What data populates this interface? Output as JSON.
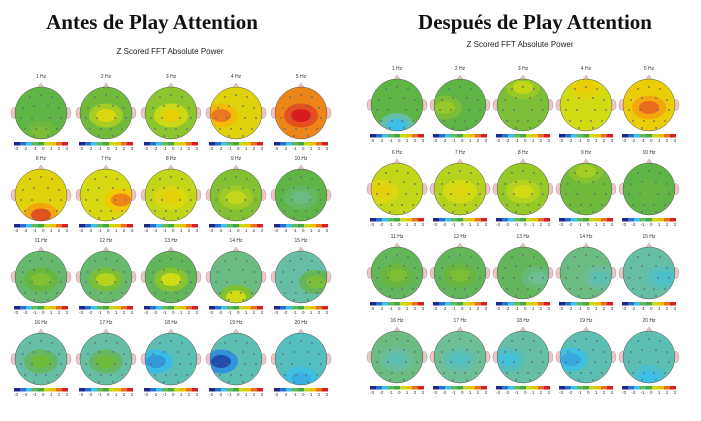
{
  "panels": [
    {
      "title": "Antes de Play Attention",
      "subtitle": "Z Scored FFT Absolute Power",
      "maps": [
        {
          "label": "1 Hz",
          "base": 0,
          "hot": 0.3,
          "region": "posterior"
        },
        {
          "label": "2 Hz",
          "base": 0.2,
          "hot": 1.2,
          "region": "center"
        },
        {
          "label": "3 Hz",
          "base": 0.5,
          "hot": 1.4,
          "region": "center"
        },
        {
          "label": "4 Hz",
          "base": 1.3,
          "hot": 2.3,
          "region": "left"
        },
        {
          "label": "5 Hz",
          "base": 2.2,
          "hot": 3,
          "region": "center"
        },
        {
          "label": "6 Hz",
          "base": 1.3,
          "hot": 2.6,
          "region": "posterior"
        },
        {
          "label": "7 Hz",
          "base": 1.1,
          "hot": 2.2,
          "region": "right"
        },
        {
          "label": "8 Hz",
          "base": 0.9,
          "hot": 1.4,
          "region": "center"
        },
        {
          "label": "9 Hz",
          "base": 0.4,
          "hot": 0.9,
          "region": "center"
        },
        {
          "label": "10 Hz",
          "base": 0,
          "hot": -0.3,
          "region": "center"
        },
        {
          "label": "11 Hz",
          "base": -0.2,
          "hot": 0.4,
          "region": "center"
        },
        {
          "label": "12 Hz",
          "base": -0.2,
          "hot": 0.8,
          "region": "center"
        },
        {
          "label": "13 Hz",
          "base": -0.1,
          "hot": 1,
          "region": "center"
        },
        {
          "label": "14 Hz",
          "base": -0.3,
          "hot": 1,
          "region": "posterior"
        },
        {
          "label": "15 Hz",
          "base": -0.5,
          "hot": 0.3,
          "region": "right"
        },
        {
          "label": "16 Hz",
          "base": -0.5,
          "hot": 0.2,
          "region": "center"
        },
        {
          "label": "17 Hz",
          "base": -0.5,
          "hot": 0.2,
          "region": "center"
        },
        {
          "label": "18 Hz",
          "base": -0.6,
          "hot": -1.5,
          "region": "left"
        },
        {
          "label": "19 Hz",
          "base": -0.6,
          "hot": -2.5,
          "region": "left"
        },
        {
          "label": "20 Hz",
          "base": -0.7,
          "hot": -1.2,
          "region": "posterior"
        }
      ]
    },
    {
      "title": "Después de Play Attention",
      "subtitle": "Z Scored FFT Absolute Power",
      "maps": [
        {
          "label": "1 Hz",
          "base": 0,
          "hot": -1,
          "region": "posterior"
        },
        {
          "label": "2 Hz",
          "base": 0,
          "hot": 0.6,
          "region": "left"
        },
        {
          "label": "3 Hz",
          "base": 0.3,
          "hot": 0.9,
          "region": "frontal"
        },
        {
          "label": "4 Hz",
          "base": 1,
          "hot": 1.5,
          "region": "frontal"
        },
        {
          "label": "5 Hz",
          "base": 1.5,
          "hot": 2.4,
          "region": "center"
        },
        {
          "label": "6 Hz",
          "base": 0.9,
          "hot": 1.4,
          "region": "left"
        },
        {
          "label": "7 Hz",
          "base": 0.8,
          "hot": 1.2,
          "region": "center"
        },
        {
          "label": "8 Hz",
          "base": 0.6,
          "hot": 1,
          "region": "center"
        },
        {
          "label": "9 Hz",
          "base": 0.2,
          "hot": 0.7,
          "region": "frontal"
        },
        {
          "label": "10 Hz",
          "base": 0,
          "hot": 0.1,
          "region": "center"
        },
        {
          "label": "11 Hz",
          "base": -0.1,
          "hot": 0.3,
          "region": "center"
        },
        {
          "label": "12 Hz",
          "base": -0.1,
          "hot": 0.3,
          "region": "center"
        },
        {
          "label": "13 Hz",
          "base": -0.1,
          "hot": -0.4,
          "region": "right"
        },
        {
          "label": "14 Hz",
          "base": -0.3,
          "hot": -0.6,
          "region": "right"
        },
        {
          "label": "15 Hz",
          "base": -0.5,
          "hot": -0.8,
          "region": "right"
        },
        {
          "label": "16 Hz",
          "base": -0.3,
          "hot": -0.6,
          "region": "center"
        },
        {
          "label": "17 Hz",
          "base": -0.4,
          "hot": -0.7,
          "region": "center"
        },
        {
          "label": "18 Hz",
          "base": -0.5,
          "hot": -0.9,
          "region": "left"
        },
        {
          "label": "19 Hz",
          "base": -0.6,
          "hot": -1.3,
          "region": "left"
        },
        {
          "label": "20 Hz",
          "base": -0.6,
          "hot": -1,
          "region": "posterior"
        }
      ]
    }
  ],
  "colorbar_ticks": [
    "-3",
    "-2",
    "-1",
    "0",
    "1",
    "2",
    "3"
  ],
  "colorbar_colors": [
    "#1a2a8c",
    "#2a6fd0",
    "#3cc0e8",
    "#5fb85a",
    "#46a83a",
    "#c8d820",
    "#f0c000",
    "#e87020",
    "#d42020"
  ]
}
